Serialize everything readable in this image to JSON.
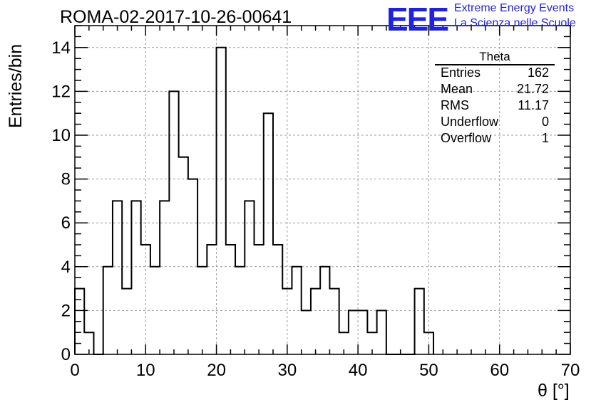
{
  "header": {
    "title": "ROMA-02-2017-10-26-00641",
    "logo_text": "EEE",
    "logo_line1": "Extreme Energy Events",
    "logo_line2": "La Scienza nelle Scuole",
    "logo_color": "#1f22e0"
  },
  "stats": {
    "name": "Theta",
    "rows": [
      {
        "label": "Entries",
        "value": "162"
      },
      {
        "label": "Mean",
        "value": "21.72"
      },
      {
        "label": "RMS",
        "value": "11.17"
      },
      {
        "label": "Underflow",
        "value": "0"
      },
      {
        "label": "Overflow",
        "value": "1"
      }
    ]
  },
  "chart_data": {
    "type": "histogram",
    "title": "ROMA-02-2017-10-26-00641",
    "xlabel": "θ [°]",
    "ylabel": "Entries/bin",
    "xlim": [
      0,
      70
    ],
    "ylim": [
      0,
      15
    ],
    "bin_width": 1.3333,
    "bin_edges_start": 0,
    "values": [
      3,
      1,
      0,
      4,
      7,
      3,
      7,
      5,
      4,
      7,
      12,
      9,
      8,
      4,
      5,
      14,
      5,
      4,
      7,
      5,
      11,
      5,
      3,
      4,
      2,
      3,
      4,
      3,
      1,
      2,
      2,
      1,
      2,
      0,
      0,
      0,
      3,
      1
    ],
    "x_ticks": [
      0,
      10,
      20,
      30,
      40,
      50,
      60,
      70
    ],
    "y_ticks": [
      0,
      2,
      4,
      6,
      8,
      10,
      12,
      14
    ],
    "grid": true,
    "line_color": "#000000"
  }
}
